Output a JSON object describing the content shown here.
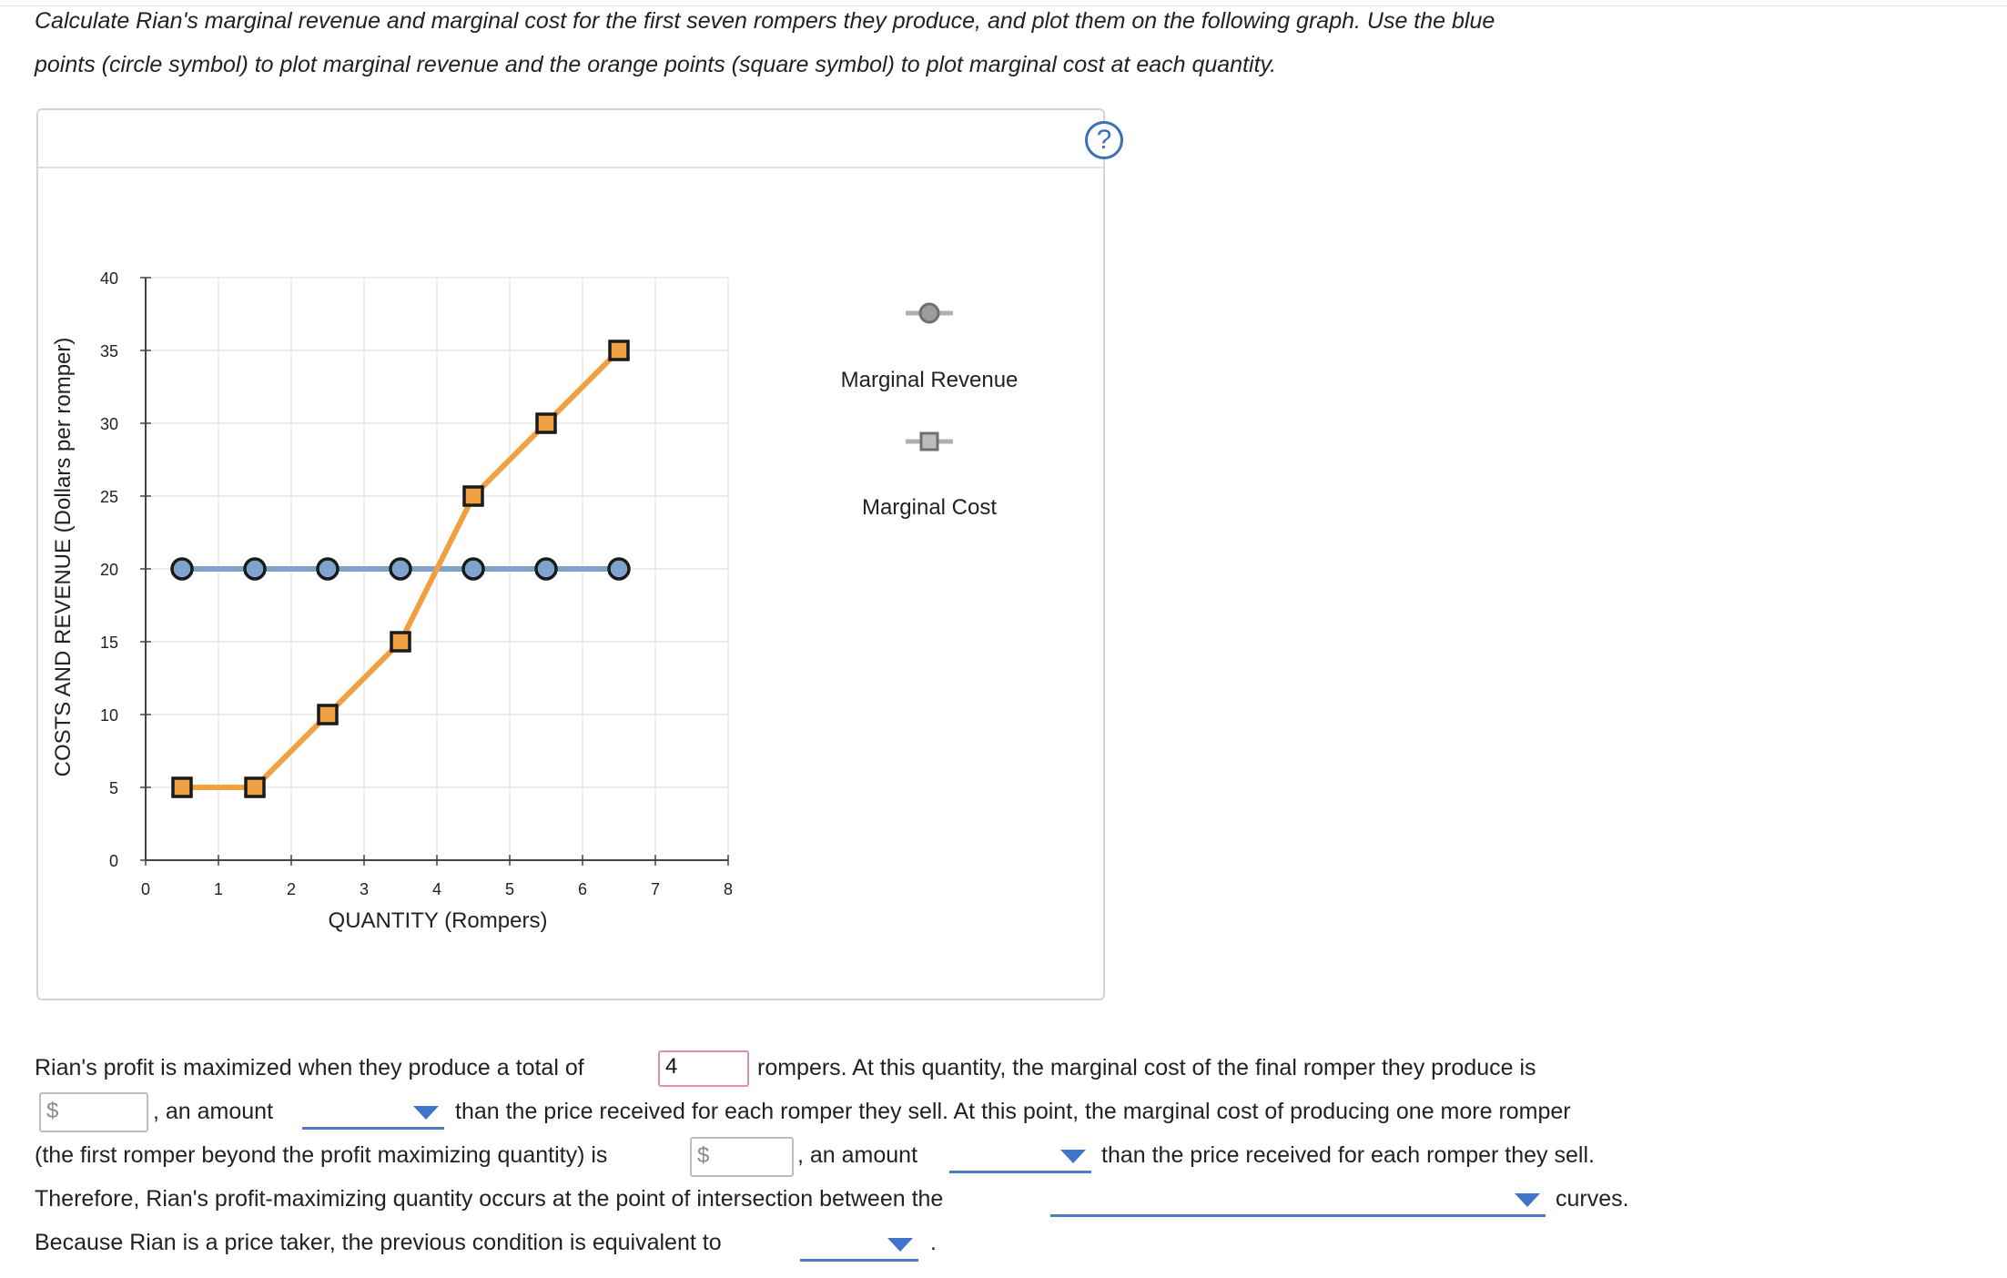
{
  "instructions": {
    "line1": "Calculate Rian's marginal revenue and marginal cost for the first seven rompers they produce, and plot them on the following graph. Use the blue",
    "line2": "points (circle symbol) to plot marginal revenue and the orange points (square symbol) to plot marginal cost at each quantity."
  },
  "help_icon": {
    "icon": "question-icon",
    "glyph": "?"
  },
  "colors": {
    "mr": "#7ea3cf",
    "mc": "#f0a03e",
    "marker_stroke": "#1a1a1a",
    "dropdown": "#3f74c9"
  },
  "chart_data": {
    "type": "line",
    "xlabel": "QUANTITY (Rompers)",
    "ylabel": "COSTS AND REVENUE (Dollars per romper)",
    "xlim": [
      0,
      8
    ],
    "ylim": [
      0,
      40
    ],
    "x_ticks": [
      "0",
      "1",
      "2",
      "3",
      "4",
      "5",
      "6",
      "7",
      "8"
    ],
    "y_ticks": [
      "0",
      "5",
      "10",
      "15",
      "20",
      "25",
      "30",
      "35",
      "40"
    ],
    "grid": true,
    "legend_position": "right",
    "series": [
      {
        "name": "Marginal Revenue",
        "marker": "circle",
        "color": "#7ea3cf",
        "x": [
          0.5,
          1.5,
          2.5,
          3.5,
          4.5,
          5.5,
          6.5
        ],
        "y": [
          20,
          20,
          20,
          20,
          20,
          20,
          20
        ]
      },
      {
        "name": "Marginal Cost",
        "marker": "square",
        "color": "#f0a03e",
        "x": [
          0.5,
          1.5,
          2.5,
          3.5,
          4.5,
          5.5,
          6.5
        ],
        "y": [
          5,
          5,
          10,
          15,
          25,
          30,
          35
        ]
      }
    ]
  },
  "questions": {
    "l1_a": "Rian's profit is maximized when they produce a total of",
    "l1_b": "rompers. At this quantity, the marginal cost of the final romper they produce is",
    "l2_a": ", an amount",
    "l2_b": "than the price received for each romper they sell. At this point, the marginal cost of producing one more romper",
    "l3_a": "(the first romper beyond the profit maximizing quantity) is",
    "l3_b": ", an amount",
    "l3_c": "than the price received for each romper they sell.",
    "l4_a": "Therefore, Rian's profit-maximizing quantity occurs at the point of intersection between the",
    "l4_b": "curves.",
    "l5_a": "Because Rian is a price taker, the previous condition is equivalent to",
    "l5_b": ".",
    "currency_symbol": "$",
    "quantity_value": "4",
    "mc_final_value": "",
    "mc_next_value": "",
    "dropdown_1": "",
    "dropdown_2": "",
    "dropdown_3": "",
    "dropdown_4": ""
  }
}
